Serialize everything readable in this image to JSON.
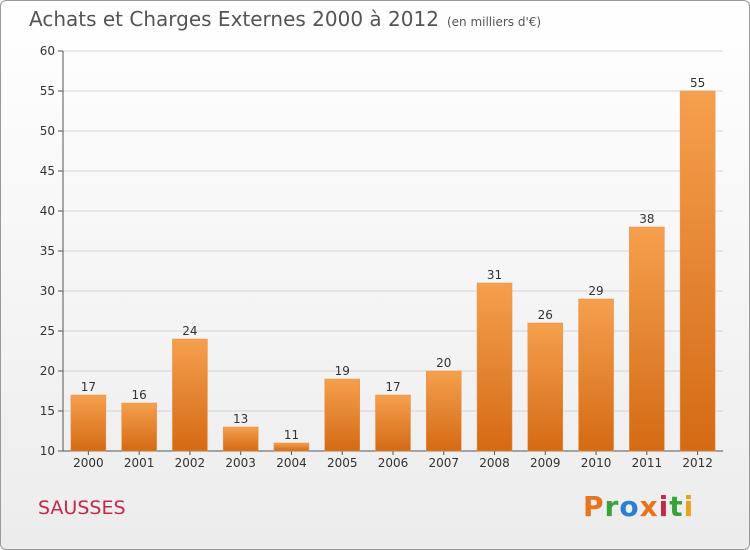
{
  "chart_data": {
    "type": "bar",
    "title": "Achats et Charges Externes 2000 à 2012",
    "subtitle": "(en milliers d'€)",
    "categories": [
      "2000",
      "2001",
      "2002",
      "2003",
      "2004",
      "2005",
      "2006",
      "2007",
      "2008",
      "2009",
      "2010",
      "2011",
      "2012"
    ],
    "values": [
      17,
      16,
      24,
      13,
      11,
      19,
      17,
      20,
      31,
      26,
      29,
      38,
      55
    ],
    "ylim": [
      10,
      60
    ],
    "yticks": [
      10,
      15,
      20,
      25,
      30,
      35,
      40,
      45,
      50,
      55,
      60
    ],
    "grid": true,
    "bar_color_top": "#f5a04e",
    "bar_color_bottom": "#d46a14"
  },
  "footer": {
    "place_name": "SAUSSES",
    "logo_text": "Proxiti",
    "logo_colors": [
      "#e8731c",
      "#39a23a",
      "#2a7fd4",
      "#e8731c",
      "#c0294a",
      "#39a23a",
      "#e8a21c"
    ]
  }
}
